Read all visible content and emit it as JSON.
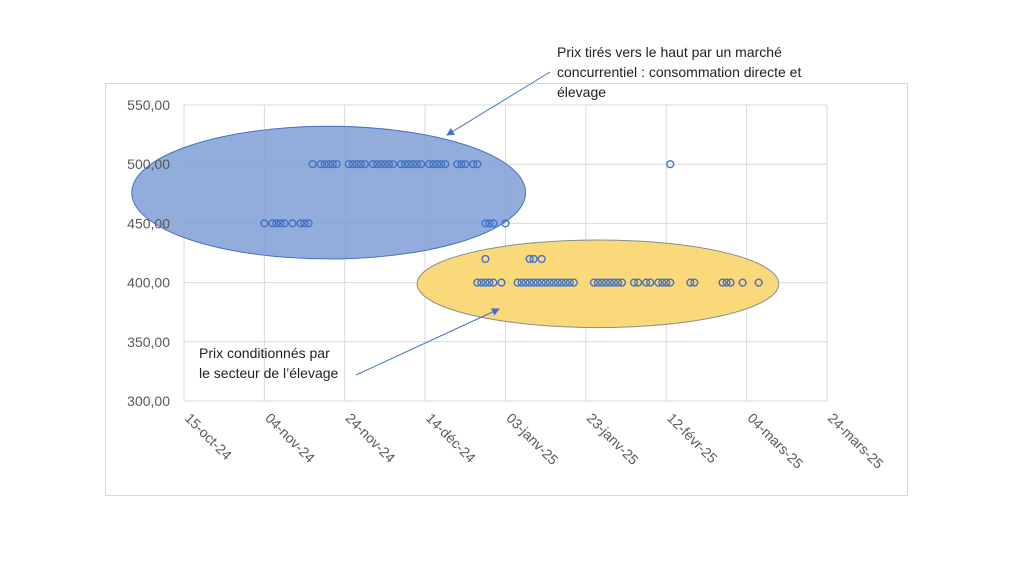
{
  "annotations": {
    "top": [
      "Prix tirés vers le haut par un marché",
      "concurrentiel : consommation directe et",
      "élevage"
    ],
    "bottom": [
      "Prix conditionnés par",
      "le secteur de l’élevage"
    ]
  },
  "colors": {
    "marker": "#4472c4",
    "ellipse_blue_fill": "#7f9fd5",
    "ellipse_blue_stroke": "#4472c4",
    "ellipse_yellow_fill": "#f8d56b",
    "ellipse_yellow_stroke": "#8c8c8c",
    "grid": "#d9d9d9",
    "arrow": "#4472c4"
  },
  "chart_data": {
    "type": "scatter",
    "title": "",
    "xlabel": "",
    "ylabel": "",
    "x_axis": "date",
    "xlim": [
      "2024-10-15",
      "2025-03-24"
    ],
    "ylim": [
      300,
      550
    ],
    "grid": true,
    "legend": "none",
    "x_ticks": [
      {
        "date": "2024-10-15",
        "label": "15-oct-24"
      },
      {
        "date": "2024-11-04",
        "label": "04-nov-24"
      },
      {
        "date": "2024-11-24",
        "label": "24-nov-24"
      },
      {
        "date": "2024-12-14",
        "label": "14-déc-24"
      },
      {
        "date": "2025-01-03",
        "label": "03-janv-25"
      },
      {
        "date": "2025-01-23",
        "label": "23-janv-25"
      },
      {
        "date": "2025-02-12",
        "label": "12-févr-25"
      },
      {
        "date": "2025-03-04",
        "label": "04-mars-25"
      },
      {
        "date": "2025-03-24",
        "label": "24-mars-25"
      }
    ],
    "y_ticks": [
      {
        "value": 300,
        "label": "300,00"
      },
      {
        "value": 350,
        "label": "350,00"
      },
      {
        "value": 400,
        "label": "400,00"
      },
      {
        "value": 450,
        "label": "450,00"
      },
      {
        "value": 500,
        "label": "500,00"
      },
      {
        "value": 550,
        "label": "550,00"
      }
    ],
    "points": [
      {
        "x": "2024-11-04",
        "y": 450
      },
      {
        "x": "2024-11-06",
        "y": 450
      },
      {
        "x": "2024-11-07",
        "y": 450
      },
      {
        "x": "2024-11-08",
        "y": 450
      },
      {
        "x": "2024-11-09",
        "y": 450
      },
      {
        "x": "2024-11-11",
        "y": 450
      },
      {
        "x": "2024-11-13",
        "y": 450
      },
      {
        "x": "2024-11-14",
        "y": 450
      },
      {
        "x": "2024-11-15",
        "y": 450
      },
      {
        "x": "2024-11-16",
        "y": 500
      },
      {
        "x": "2024-11-18",
        "y": 500
      },
      {
        "x": "2024-11-19",
        "y": 500
      },
      {
        "x": "2024-11-20",
        "y": 500
      },
      {
        "x": "2024-11-21",
        "y": 500
      },
      {
        "x": "2024-11-22",
        "y": 500
      },
      {
        "x": "2024-11-25",
        "y": 500
      },
      {
        "x": "2024-11-26",
        "y": 500
      },
      {
        "x": "2024-11-27",
        "y": 500
      },
      {
        "x": "2024-11-28",
        "y": 500
      },
      {
        "x": "2024-11-29",
        "y": 500
      },
      {
        "x": "2024-12-01",
        "y": 500
      },
      {
        "x": "2024-12-02",
        "y": 500
      },
      {
        "x": "2024-12-03",
        "y": 500
      },
      {
        "x": "2024-12-04",
        "y": 500
      },
      {
        "x": "2024-12-05",
        "y": 500
      },
      {
        "x": "2024-12-06",
        "y": 500
      },
      {
        "x": "2024-12-08",
        "y": 500
      },
      {
        "x": "2024-12-09",
        "y": 500
      },
      {
        "x": "2024-12-10",
        "y": 500
      },
      {
        "x": "2024-12-11",
        "y": 500
      },
      {
        "x": "2024-12-12",
        "y": 500
      },
      {
        "x": "2024-12-13",
        "y": 500
      },
      {
        "x": "2024-12-15",
        "y": 500
      },
      {
        "x": "2024-12-16",
        "y": 500
      },
      {
        "x": "2024-12-17",
        "y": 500
      },
      {
        "x": "2024-12-18",
        "y": 500
      },
      {
        "x": "2024-12-19",
        "y": 500
      },
      {
        "x": "2024-12-22",
        "y": 500
      },
      {
        "x": "2024-12-23",
        "y": 500
      },
      {
        "x": "2024-12-24",
        "y": 500
      },
      {
        "x": "2024-12-26",
        "y": 500
      },
      {
        "x": "2024-12-27",
        "y": 500
      },
      {
        "x": "2024-12-29",
        "y": 450
      },
      {
        "x": "2024-12-30",
        "y": 450
      },
      {
        "x": "2024-12-31",
        "y": 450
      },
      {
        "x": "2025-01-03",
        "y": 450
      },
      {
        "x": "2024-12-29",
        "y": 420
      },
      {
        "x": "2024-12-27",
        "y": 400
      },
      {
        "x": "2024-12-28",
        "y": 400
      },
      {
        "x": "2024-12-29",
        "y": 400
      },
      {
        "x": "2024-12-30",
        "y": 400
      },
      {
        "x": "2024-12-31",
        "y": 400
      },
      {
        "x": "2025-01-02",
        "y": 400
      },
      {
        "x": "2025-01-06",
        "y": 400
      },
      {
        "x": "2025-01-07",
        "y": 400
      },
      {
        "x": "2025-01-08",
        "y": 400
      },
      {
        "x": "2025-01-09",
        "y": 400
      },
      {
        "x": "2025-01-10",
        "y": 400
      },
      {
        "x": "2025-01-11",
        "y": 400
      },
      {
        "x": "2025-01-12",
        "y": 400
      },
      {
        "x": "2025-01-13",
        "y": 400
      },
      {
        "x": "2025-01-14",
        "y": 400
      },
      {
        "x": "2025-01-15",
        "y": 400
      },
      {
        "x": "2025-01-16",
        "y": 400
      },
      {
        "x": "2025-01-17",
        "y": 400
      },
      {
        "x": "2025-01-18",
        "y": 400
      },
      {
        "x": "2025-01-19",
        "y": 400
      },
      {
        "x": "2025-01-20",
        "y": 400
      },
      {
        "x": "2025-01-09",
        "y": 420
      },
      {
        "x": "2025-01-10",
        "y": 420
      },
      {
        "x": "2025-01-12",
        "y": 420
      },
      {
        "x": "2025-01-25",
        "y": 400
      },
      {
        "x": "2025-01-26",
        "y": 400
      },
      {
        "x": "2025-01-27",
        "y": 400
      },
      {
        "x": "2025-01-28",
        "y": 400
      },
      {
        "x": "2025-01-29",
        "y": 400
      },
      {
        "x": "2025-01-30",
        "y": 400
      },
      {
        "x": "2025-01-31",
        "y": 400
      },
      {
        "x": "2025-02-01",
        "y": 400
      },
      {
        "x": "2025-02-04",
        "y": 400
      },
      {
        "x": "2025-02-05",
        "y": 400
      },
      {
        "x": "2025-02-07",
        "y": 400
      },
      {
        "x": "2025-02-08",
        "y": 400
      },
      {
        "x": "2025-02-10",
        "y": 400
      },
      {
        "x": "2025-02-11",
        "y": 400
      },
      {
        "x": "2025-02-12",
        "y": 400
      },
      {
        "x": "2025-02-13",
        "y": 400
      },
      {
        "x": "2025-02-13",
        "y": 500
      },
      {
        "x": "2025-02-18",
        "y": 400
      },
      {
        "x": "2025-02-19",
        "y": 400
      },
      {
        "x": "2025-02-26",
        "y": 400
      },
      {
        "x": "2025-02-27",
        "y": 400
      },
      {
        "x": "2025-02-28",
        "y": 400
      },
      {
        "x": "2025-03-03",
        "y": 400
      },
      {
        "x": "2025-03-07",
        "y": 400
      }
    ]
  }
}
